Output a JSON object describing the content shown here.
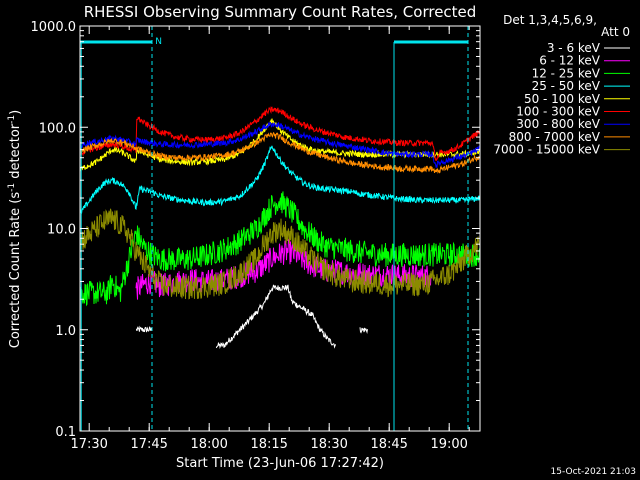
{
  "chart_data": {
    "type": "line",
    "title": "RHESSI Observing Summary Count Rates, Corrected",
    "xlabel": "Start Time (23-Jun-06 17:27:42)",
    "ylabel": "Corrected Count Rate (s^-1 detector^-1)",
    "ylabel_main": "Corrected Count Rate (s",
    "ylabel_sup1": "-1",
    "ylabel_mid": " detector",
    "ylabel_sup2": "-1",
    "ylabel_end": ")",
    "yscale": "log",
    "ylim": [
      0.1,
      1000
    ],
    "xlim_min": [
      0,
      100
    ],
    "yticks": [
      {
        "v": 1000,
        "label": "1000.0"
      },
      {
        "v": 100,
        "label": "100.0"
      },
      {
        "v": 10,
        "label": "10.0"
      },
      {
        "v": 1,
        "label": "1.0"
      },
      {
        "v": 0.1,
        "label": "0.1"
      }
    ],
    "xticks": [
      {
        "v": 2.3,
        "label": "17:30"
      },
      {
        "v": 17.3,
        "label": "17:45"
      },
      {
        "v": 32.3,
        "label": "18:00"
      },
      {
        "v": 47.3,
        "label": "18:15"
      },
      {
        "v": 62.3,
        "label": "18:30"
      },
      {
        "v": 77.3,
        "label": "18:45"
      },
      {
        "v": 92.3,
        "label": "19:00"
      }
    ],
    "legend_header": [
      "Det 1,3,4,5,6,9,",
      "Att 0"
    ],
    "legend_position": "right",
    "series": [
      {
        "name": "3 - 6 keV",
        "color": "#ffffff",
        "x": [
          0,
          8,
          14,
          14.1,
          18,
          26,
          30,
          34,
          36,
          40,
          42,
          46,
          48,
          52,
          53,
          58,
          60,
          62,
          64,
          66,
          70,
          72,
          74,
          76,
          80,
          84,
          88,
          92,
          96,
          100
        ],
        "y": [
          null,
          null,
          null,
          1.0,
          1.0,
          null,
          null,
          0.7,
          0.7,
          1.0,
          1.2,
          1.8,
          2.6,
          2.6,
          1.9,
          1.4,
          1.0,
          0.8,
          0.7,
          null,
          1.0,
          1.0,
          null,
          null,
          null,
          null,
          null,
          null,
          null,
          null
        ]
      },
      {
        "name": "6 - 12 keV",
        "color": "#ff00ff",
        "x": [
          14,
          16,
          18,
          20,
          24,
          28,
          32,
          36,
          40,
          44,
          46,
          48,
          50,
          52,
          54,
          56,
          58,
          60,
          62,
          64,
          66,
          68,
          70,
          72,
          74,
          76,
          78,
          80,
          82,
          84,
          86,
          88
        ],
        "y": [
          2.5,
          2.8,
          3.0,
          2.7,
          3.0,
          3.1,
          3.0,
          3.1,
          3.4,
          3.8,
          4.3,
          5.1,
          5.6,
          5.9,
          5.5,
          4.8,
          4.3,
          4.0,
          3.8,
          3.8,
          3.7,
          3.6,
          3.6,
          3.5,
          3.5,
          3.5,
          3.5,
          3.4,
          3.4,
          3.4,
          3.4,
          3.4
        ]
      },
      {
        "name": "12 - 25 keV",
        "color": "#00ff00",
        "x": [
          0,
          5,
          7,
          8,
          10,
          14,
          16,
          18,
          20,
          24,
          28,
          32,
          36,
          40,
          44,
          46,
          48,
          50,
          52,
          54,
          56,
          58,
          60,
          62,
          64,
          66,
          68,
          70,
          72,
          74,
          76,
          78,
          80,
          82,
          84,
          86,
          88,
          90,
          92,
          94,
          96,
          98,
          100
        ],
        "y": [
          2.3,
          2.3,
          2.3,
          3.0,
          2.3,
          9.0,
          6.5,
          5.5,
          5.0,
          4.9,
          5.0,
          5.5,
          6.2,
          7.5,
          10,
          13,
          17,
          19,
          16,
          13,
          10,
          8.5,
          7.2,
          6.6,
          6.4,
          6.2,
          6.0,
          5.8,
          5.7,
          5.6,
          5.5,
          5.5,
          5.5,
          5.5,
          5.5,
          5.5,
          5.5,
          5.5,
          5.5,
          5.5,
          5.5,
          5.5,
          5.6
        ]
      },
      {
        "name": "25 - 50 keV",
        "color": "#00ffff",
        "x": [
          0,
          2,
          4,
          6,
          8,
          10,
          12,
          14,
          15,
          16,
          18,
          20,
          24,
          28,
          32,
          36,
          40,
          44,
          46,
          48,
          50,
          52,
          54,
          56,
          58,
          60,
          62,
          64,
          66,
          68,
          70,
          72,
          74,
          76,
          78,
          80,
          82,
          84,
          86,
          88,
          90,
          92,
          94,
          96,
          98,
          100
        ],
        "y": [
          14,
          18,
          23,
          28,
          30,
          28,
          24,
          16,
          25,
          24,
          23,
          21,
          19.5,
          18.5,
          18,
          18.5,
          21,
          30,
          42,
          65,
          48,
          38,
          32,
          28,
          26,
          25,
          24.5,
          24,
          23.5,
          23,
          22,
          21.5,
          21,
          20.5,
          20,
          19.5,
          19.5,
          19,
          19,
          19,
          19,
          19,
          19,
          19,
          19.5,
          20
        ]
      },
      {
        "name": "50 - 100 keV",
        "color": "#ffff00",
        "x": [
          0,
          2,
          4,
          6,
          8,
          10,
          12,
          14,
          14.2,
          16,
          18,
          20,
          24,
          28,
          32,
          36,
          40,
          44,
          46,
          48,
          50,
          52,
          54,
          56,
          58,
          60,
          62,
          64,
          66,
          68,
          70,
          72,
          74,
          76,
          78,
          80,
          82,
          84,
          86,
          88,
          90,
          92,
          94,
          96,
          98,
          100
        ],
        "y": [
          38,
          42,
          45,
          52,
          60,
          58,
          52,
          45,
          60,
          55,
          52,
          48,
          46,
          45,
          46,
          48,
          55,
          75,
          95,
          118,
          95,
          80,
          70,
          64,
          60,
          58,
          57,
          56,
          55,
          55,
          54,
          54,
          54,
          54,
          54,
          54,
          54,
          54,
          54,
          54,
          54,
          54,
          54,
          54,
          56,
          58
        ]
      },
      {
        "name": "100 - 300 keV",
        "color": "#ff0000",
        "x": [
          0,
          2,
          4,
          6,
          8,
          10,
          12,
          14,
          14.2,
          16,
          18,
          20,
          24,
          28,
          32,
          36,
          40,
          44,
          46,
          48,
          50,
          52,
          54,
          56,
          58,
          60,
          62,
          64,
          66,
          68,
          70,
          72,
          74,
          76,
          78,
          80,
          82,
          84,
          86,
          88,
          89,
          90,
          92,
          94,
          96,
          98,
          100
        ],
        "y": [
          55,
          60,
          62,
          65,
          68,
          66,
          62,
          58,
          125,
          110,
          100,
          90,
          80,
          76,
          75,
          78,
          88,
          115,
          135,
          150,
          145,
          130,
          115,
          105,
          98,
          92,
          88,
          84,
          80,
          78,
          76,
          74,
          73,
          72,
          71,
          70,
          70,
          70,
          70,
          70,
          48,
          55,
          58,
          62,
          70,
          80,
          90
        ]
      },
      {
        "name": "300 - 800 keV",
        "color": "#0000ff",
        "x": [
          0,
          2,
          4,
          6,
          8,
          10,
          12,
          14,
          14.2,
          16,
          18,
          20,
          24,
          28,
          32,
          36,
          40,
          44,
          46,
          48,
          50,
          52,
          54,
          56,
          58,
          60,
          62,
          64,
          66,
          68,
          70,
          72,
          74,
          76,
          78,
          80,
          82,
          84,
          86,
          88,
          89,
          90,
          92,
          94,
          96,
          98,
          100
        ],
        "y": [
          65,
          70,
          72,
          75,
          78,
          76,
          72,
          68,
          75,
          72,
          70,
          68,
          67,
          67,
          68,
          70,
          76,
          90,
          100,
          108,
          104,
          96,
          88,
          82,
          78,
          74,
          71,
          68,
          66,
          64,
          62,
          60,
          58,
          56,
          55,
          54,
          54,
          54,
          54,
          54,
          42,
          45,
          47,
          50,
          52,
          56,
          62
        ]
      },
      {
        "name": "800 - 7000 keV",
        "color": "#ff8c00",
        "x": [
          0,
          2,
          4,
          6,
          8,
          10,
          12,
          14,
          14.2,
          16,
          18,
          20,
          24,
          28,
          32,
          36,
          40,
          44,
          46,
          48,
          50,
          52,
          54,
          56,
          58,
          60,
          62,
          64,
          66,
          68,
          70,
          72,
          74,
          76,
          78,
          80,
          82,
          84,
          86,
          88,
          89,
          90,
          92,
          94,
          96,
          98,
          100
        ],
        "y": [
          58,
          62,
          66,
          70,
          74,
          72,
          68,
          62,
          62,
          58,
          55,
          52,
          50,
          50,
          51,
          53,
          58,
          70,
          78,
          85,
          80,
          72,
          66,
          60,
          56,
          53,
          50,
          48,
          46,
          44,
          43,
          42,
          41,
          40,
          40,
          39,
          39,
          39,
          39,
          39,
          36,
          38,
          40,
          42,
          44,
          48,
          52
        ]
      },
      {
        "name": "7000 - 15000 keV",
        "color": "#8b8b00",
        "x": [
          0,
          2,
          4,
          6,
          8,
          10,
          12,
          14,
          16,
          18,
          20,
          24,
          28,
          32,
          36,
          40,
          44,
          46,
          48,
          50,
          52,
          54,
          56,
          58,
          60,
          62,
          64,
          66,
          68,
          70,
          72,
          74,
          76,
          78,
          80,
          82,
          84,
          86,
          88,
          90,
          92,
          94,
          96,
          98,
          100
        ],
        "y": [
          7.5,
          8.5,
          10,
          11.5,
          12.5,
          11,
          9,
          6,
          4.5,
          3.5,
          2.8,
          2.6,
          2.6,
          2.7,
          2.9,
          3.6,
          5,
          7,
          9,
          10,
          9,
          7.5,
          6,
          5,
          4.2,
          3.8,
          3.4,
          3.2,
          3.0,
          3.0,
          2.9,
          2.9,
          2.8,
          2.8,
          2.8,
          2.8,
          2.8,
          2.8,
          3.0,
          3.2,
          3.5,
          4,
          5,
          6,
          7
        ]
      }
    ],
    "flag_label": "N",
    "saa_segments": [
      [
        0,
        18
      ],
      [
        78.5,
        97
      ]
    ],
    "event_lines": [
      18,
      97
    ],
    "footer": "15-Oct-2021 21:03"
  }
}
